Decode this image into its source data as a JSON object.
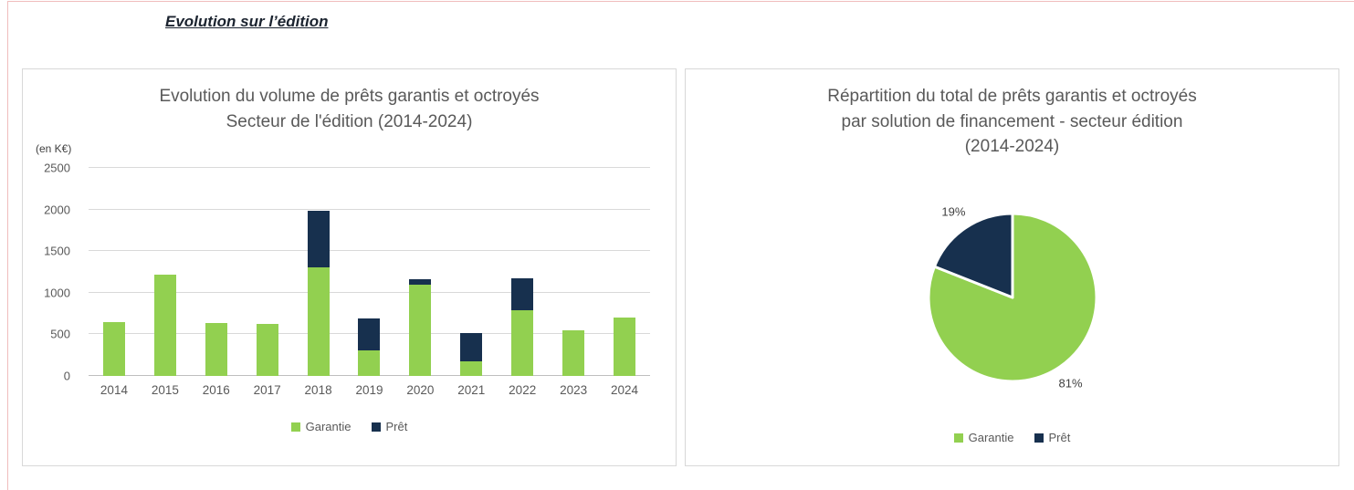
{
  "page": {
    "heading": "Evolution sur l’édition"
  },
  "chart_data": [
    {
      "type": "bar",
      "stacked": true,
      "title": "Evolution du volume de prêts garantis et octroyés Secteur de l'édition (2014-2024)",
      "title_lines": [
        "Evolution du volume de prêts garantis et octroyés",
        "Secteur de l'édition (2014-2024)"
      ],
      "unit_label": "(en K€)",
      "categories": [
        "2014",
        "2015",
        "2016",
        "2017",
        "2018",
        "2019",
        "2020",
        "2021",
        "2022",
        "2023",
        "2024"
      ],
      "series": [
        {
          "name": "Garantie",
          "color": "#92D050",
          "values": [
            650,
            1220,
            640,
            630,
            1300,
            310,
            1100,
            180,
            790,
            550,
            700
          ]
        },
        {
          "name": "Prêt",
          "color": "#17304E",
          "values": [
            0,
            0,
            0,
            0,
            680,
            380,
            60,
            340,
            380,
            0,
            0
          ]
        }
      ],
      "ylim": [
        0,
        2500
      ],
      "yticks": [
        0,
        500,
        1000,
        1500,
        2000,
        2500
      ],
      "grid": true,
      "legend_position": "bottom",
      "legend": [
        "Garantie",
        "Prêt"
      ]
    },
    {
      "type": "pie",
      "title": "Répartition du total de prêts garantis et octroyés par solution de financement - secteur édition (2014-2024)",
      "title_lines": [
        "Répartition du total de prêts garantis et octroyés",
        "par solution de financement - secteur édition",
        "(2014-2024)"
      ],
      "start_angle_deg": -90,
      "slices": [
        {
          "label": "Garantie",
          "value": 81,
          "display": "81%",
          "color": "#92D050"
        },
        {
          "label": "Prêt",
          "value": 19,
          "display": "19%",
          "color": "#17304E"
        }
      ],
      "legend_position": "bottom",
      "legend": [
        "Garantie",
        "Prêt"
      ]
    }
  ]
}
